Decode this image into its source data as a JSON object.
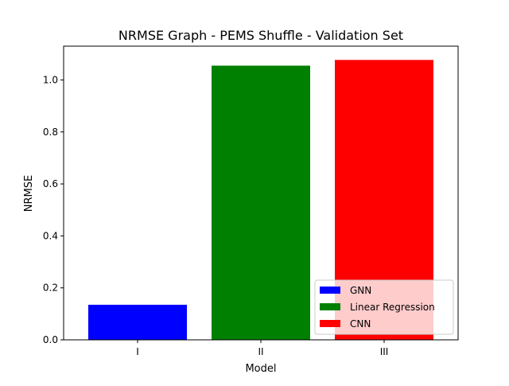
{
  "chart_data": {
    "type": "bar",
    "title": "NRMSE Graph - PEMS Shuffle - Validation Set",
    "xlabel": "Model",
    "ylabel": "NRMSE",
    "categories": [
      "I",
      "II",
      "III"
    ],
    "values": [
      0.135,
      1.055,
      1.077
    ],
    "bar_names": [
      "GNN",
      "Linear Regression",
      "CNN"
    ],
    "bar_colors": [
      "#0000ff",
      "#008000",
      "#ff0000"
    ],
    "ylim": [
      0,
      1.13
    ],
    "yticks": [
      "0.0",
      "0.2",
      "0.4",
      "0.6",
      "0.8",
      "1.0"
    ],
    "ytick_values": [
      0,
      0.2,
      0.4,
      0.6,
      0.8,
      1.0
    ],
    "grid": false,
    "legend": {
      "placement": "lower-right",
      "entries": [
        {
          "label": "GNN",
          "color": "#0000ff"
        },
        {
          "label": "Linear Regression",
          "color": "#008000"
        },
        {
          "label": "CNN",
          "color": "#ff0000"
        }
      ]
    }
  }
}
